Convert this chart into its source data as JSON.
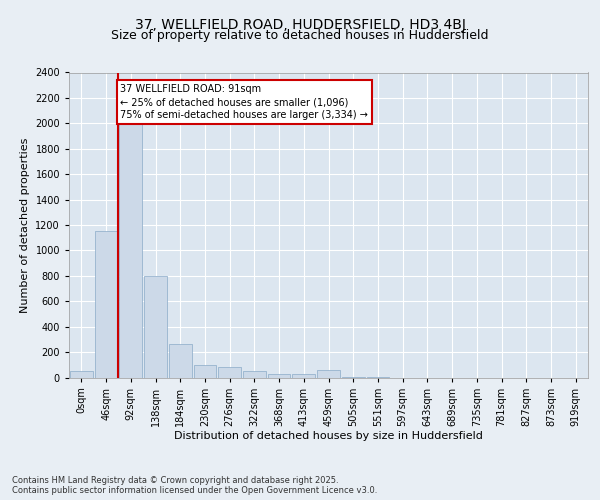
{
  "title1": "37, WELLFIELD ROAD, HUDDERSFIELD, HD3 4BJ",
  "title2": "Size of property relative to detached houses in Huddersfield",
  "xlabel": "Distribution of detached houses by size in Huddersfield",
  "ylabel": "Number of detached properties",
  "bar_labels": [
    "0sqm",
    "46sqm",
    "92sqm",
    "138sqm",
    "184sqm",
    "230sqm",
    "276sqm",
    "322sqm",
    "368sqm",
    "413sqm",
    "459sqm",
    "505sqm",
    "551sqm",
    "597sqm",
    "643sqm",
    "689sqm",
    "735sqm",
    "781sqm",
    "827sqm",
    "873sqm",
    "919sqm"
  ],
  "bar_values": [
    50,
    1150,
    2050,
    800,
    260,
    100,
    80,
    50,
    30,
    25,
    60,
    5,
    2,
    0,
    0,
    0,
    0,
    0,
    0,
    0,
    0
  ],
  "bar_color": "#ccd9e8",
  "bar_edge_color": "#8aaac8",
  "vline_x_pos": 1.5,
  "vline_color": "#cc0000",
  "annotation_text": "37 WELLFIELD ROAD: 91sqm\n← 25% of detached houses are smaller (1,096)\n75% of semi-detached houses are larger (3,334) →",
  "annotation_box_color": "#ffffff",
  "annotation_box_edge": "#cc0000",
  "ylim": [
    0,
    2400
  ],
  "yticks": [
    0,
    200,
    400,
    600,
    800,
    1000,
    1200,
    1400,
    1600,
    1800,
    2000,
    2200,
    2400
  ],
  "bg_color": "#e8eef4",
  "plot_bg_color": "#dce6f0",
  "footer_text": "Contains HM Land Registry data © Crown copyright and database right 2025.\nContains public sector information licensed under the Open Government Licence v3.0.",
  "title1_fontsize": 10,
  "title2_fontsize": 9,
  "xlabel_fontsize": 8,
  "ylabel_fontsize": 8,
  "footer_fontsize": 6,
  "tick_fontsize": 7,
  "annot_fontsize": 7
}
